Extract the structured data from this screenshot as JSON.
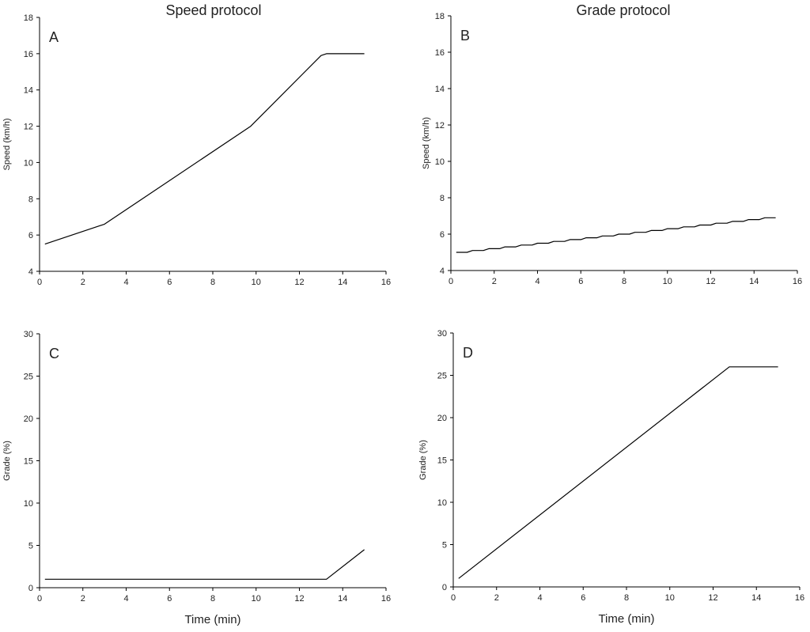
{
  "column_titles": {
    "left": "Speed protocol",
    "right": "Grade protocol"
  },
  "chart_data": [
    {
      "id": "A",
      "panel_label": "A",
      "type": "line",
      "title": "",
      "xlabel": "",
      "ylabel": "Speed (km/h)",
      "xlim": [
        0,
        16
      ],
      "ylim": [
        4,
        18
      ],
      "xticks": [
        0,
        2,
        4,
        6,
        8,
        10,
        12,
        14,
        16
      ],
      "yticks": [
        4,
        6,
        8,
        10,
        12,
        14,
        16,
        18
      ],
      "grid": false,
      "series": [
        {
          "x": [
            0.25,
            3,
            9.75,
            13,
            13.25,
            15
          ],
          "y": [
            5.5,
            6.6,
            12,
            15.9,
            16,
            16
          ]
        }
      ]
    },
    {
      "id": "B",
      "panel_label": "B",
      "type": "line",
      "title": "",
      "xlabel": "",
      "ylabel": "Speed (km/h)",
      "xlim": [
        0,
        16
      ],
      "ylim": [
        4,
        18
      ],
      "xticks": [
        0,
        2,
        4,
        6,
        8,
        10,
        12,
        14,
        16
      ],
      "yticks": [
        4,
        6,
        8,
        10,
        12,
        14,
        16,
        18
      ],
      "grid": false,
      "series": [
        {
          "x": [
            0.25,
            0.75,
            1.0,
            1.5,
            1.75,
            2.25,
            2.5,
            3.0,
            3.25,
            3.75,
            4.0,
            4.5,
            4.75,
            5.25,
            5.5,
            6.0,
            6.25,
            6.75,
            7.0,
            7.5,
            7.75,
            8.25,
            8.5,
            9.0,
            9.25,
            9.75,
            10.0,
            10.5,
            10.75,
            11.25,
            11.5,
            12.0,
            12.25,
            12.75,
            13.0,
            13.5,
            13.75,
            14.25,
            14.5,
            15.0
          ],
          "y": [
            5.0,
            5.0,
            5.1,
            5.1,
            5.2,
            5.2,
            5.3,
            5.3,
            5.4,
            5.4,
            5.5,
            5.5,
            5.6,
            5.6,
            5.7,
            5.7,
            5.8,
            5.8,
            5.9,
            5.9,
            6.0,
            6.0,
            6.1,
            6.1,
            6.2,
            6.2,
            6.3,
            6.3,
            6.4,
            6.4,
            6.5,
            6.5,
            6.6,
            6.6,
            6.7,
            6.7,
            6.8,
            6.8,
            6.9,
            6.9
          ]
        }
      ]
    },
    {
      "id": "C",
      "panel_label": "C",
      "type": "line",
      "title": "",
      "xlabel": "Time (min)",
      "ylabel": "Grade (%)",
      "xlim": [
        0,
        16
      ],
      "ylim": [
        0,
        30
      ],
      "xticks": [
        0,
        2,
        4,
        6,
        8,
        10,
        12,
        14,
        16
      ],
      "yticks": [
        0,
        5,
        10,
        15,
        20,
        25,
        30
      ],
      "grid": false,
      "series": [
        {
          "x": [
            0.25,
            13.25,
            15
          ],
          "y": [
            1,
            1,
            4.5
          ]
        }
      ]
    },
    {
      "id": "D",
      "panel_label": "D",
      "type": "line",
      "title": "",
      "xlabel": "Time (min)",
      "ylabel": "Grade (%)",
      "xlim": [
        0,
        16
      ],
      "ylim": [
        0,
        30
      ],
      "xticks": [
        0,
        2,
        4,
        6,
        8,
        10,
        12,
        14,
        16
      ],
      "yticks": [
        0,
        5,
        10,
        15,
        20,
        25,
        30
      ],
      "grid": false,
      "series": [
        {
          "x": [
            0.25,
            12.75,
            15
          ],
          "y": [
            1,
            26,
            26
          ]
        }
      ]
    }
  ]
}
